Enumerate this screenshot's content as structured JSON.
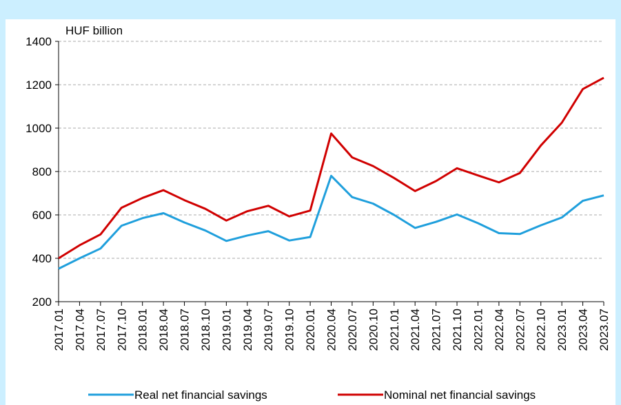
{
  "chart_data": {
    "type": "line",
    "ylabel": "HUF billion",
    "categories": [
      "2017.01",
      "2017.04",
      "2017.07",
      "2017.10",
      "2018.01",
      "2018.04",
      "2018.07",
      "2018.10",
      "2019.01",
      "2019.04",
      "2019.07",
      "2019.10",
      "2020.01",
      "2020.04",
      "2020.07",
      "2020.10",
      "2021.01",
      "2021.04",
      "2021.07",
      "2021.10",
      "2022.01",
      "2022.04",
      "2022.07",
      "2022.10",
      "2023.01",
      "2023.04",
      "2023.07"
    ],
    "series": [
      {
        "name": "Real net financial savings",
        "color": "#1f9fdc",
        "values": [
          352,
          400,
          445,
          550,
          585,
          608,
          565,
          528,
          480,
          505,
          525,
          482,
          498,
          780,
          682,
          652,
          600,
          540,
          568,
          602,
          562,
          516,
          512,
          552,
          588,
          665,
          690
        ]
      },
      {
        "name": "Nominal net financial savings",
        "color": "#d00000",
        "values": [
          400,
          460,
          510,
          633,
          678,
          714,
          668,
          628,
          574,
          617,
          642,
          593,
          620,
          975,
          865,
          825,
          770,
          710,
          756,
          815,
          782,
          750,
          793,
          920,
          1025,
          1180,
          1232
        ]
      }
    ],
    "ylim": [
      200,
      1400
    ],
    "yticks": [
      200,
      400,
      600,
      800,
      1000,
      1200,
      1400
    ],
    "grid": true,
    "legend": "bottom"
  }
}
